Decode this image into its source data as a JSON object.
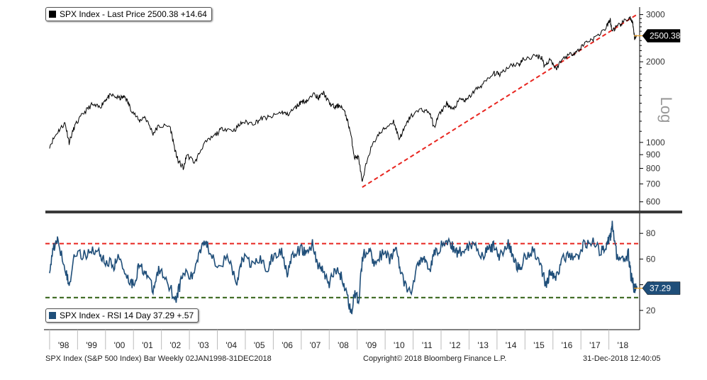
{
  "footer": {
    "left": "SPX Index (S&P 500 Index) Bar  Weekly 02JAN1998-31DEC2018",
    "center": "Copyright© 2018 Bloomberg Finance L.P.",
    "right": "31-Dec-2018 12:40:05"
  },
  "colors": {
    "price_line": "#000000",
    "rsi_line": "#1f4e79",
    "red_dashed": "#e8251f",
    "green_dashed": "#2e5e10",
    "callout_line": "#f0a020",
    "divider": "#3a3a3a"
  },
  "chart_data": [
    {
      "type": "line",
      "panel": "price",
      "legend": "SPX Index - Last Price  2500.38  +14.64",
      "scale_label": "Log",
      "y_scale": "log",
      "ylim": [
        560,
        3200
      ],
      "y_ticks": [
        600,
        700,
        800,
        900,
        1000,
        2000,
        3000
      ],
      "last_value_label": "2500.38",
      "last_value": 2500.38,
      "x": [
        1998.0,
        1998.3,
        1998.55,
        1998.7,
        1998.9,
        1999.2,
        1999.5,
        1999.8,
        2000.0,
        2000.2,
        2000.5,
        2000.7,
        2000.9,
        2001.2,
        2001.4,
        2001.7,
        2001.9,
        2002.3,
        2002.5,
        2002.6,
        2002.8,
        2002.9,
        2003.2,
        2003.5,
        2003.9,
        2004.2,
        2004.6,
        2004.9,
        2005.3,
        2005.6,
        2005.9,
        2006.3,
        2006.5,
        2006.8,
        2007.0,
        2007.2,
        2007.5,
        2007.6,
        2007.8,
        2008.0,
        2008.2,
        2008.4,
        2008.6,
        2008.75,
        2008.9,
        2009.05,
        2009.18,
        2009.4,
        2009.7,
        2010.0,
        2010.3,
        2010.5,
        2010.7,
        2010.9,
        2011.3,
        2011.6,
        2011.75,
        2011.9,
        2012.2,
        2012.4,
        2012.7,
        2012.9,
        2013.2,
        2013.5,
        2013.9,
        2014.1,
        2014.5,
        2014.8,
        2014.95,
        2015.4,
        2015.6,
        2015.7,
        2015.9,
        2016.1,
        2016.4,
        2016.7,
        2016.9,
        2017.2,
        2017.5,
        2017.9,
        2018.05,
        2018.1,
        2018.3,
        2018.5,
        2018.75,
        2018.85,
        2018.92,
        2019.0
      ],
      "series": [
        {
          "values": [
            970,
            1100,
            1180,
            1000,
            1150,
            1280,
            1380,
            1350,
            1450,
            1500,
            1460,
            1480,
            1340,
            1200,
            1250,
            1080,
            1150,
            1150,
            920,
            850,
            800,
            900,
            840,
            980,
            1060,
            1130,
            1110,
            1190,
            1180,
            1230,
            1240,
            1300,
            1270,
            1350,
            1420,
            1430,
            1520,
            1460,
            1530,
            1400,
            1350,
            1380,
            1260,
            1100,
            880,
            880,
            700,
            900,
            1050,
            1130,
            1200,
            1030,
            1130,
            1250,
            1330,
            1290,
            1130,
            1250,
            1400,
            1320,
            1450,
            1430,
            1560,
            1650,
            1810,
            1800,
            1950,
            1960,
            2050,
            2100,
            2080,
            1920,
            2050,
            1880,
            2080,
            2150,
            2200,
            2380,
            2450,
            2680,
            2870,
            2620,
            2700,
            2800,
            2930,
            2770,
            2450,
            2500.38
          ]
        }
      ],
      "trendline": {
        "style": "dashed",
        "points": [
          [
            2009.18,
            680
          ],
          [
            2019.0,
            3000
          ]
        ]
      }
    },
    {
      "type": "line",
      "panel": "rsi",
      "legend": "SPX Index - RSI 14 Day  37.29  +.57",
      "ylim": [
        5,
        95
      ],
      "y_ticks": [
        20,
        40,
        60,
        80
      ],
      "last_value_label": "37.29",
      "last_value": 37.29,
      "x": [
        1998.0,
        1998.15,
        1998.3,
        1998.55,
        1998.7,
        1998.9,
        1999.2,
        1999.5,
        1999.8,
        2000.0,
        2000.3,
        2000.5,
        2000.8,
        2001.0,
        2001.2,
        2001.45,
        2001.7,
        2001.9,
        2002.2,
        2002.5,
        2002.6,
        2002.8,
        2003.1,
        2003.3,
        2003.5,
        2003.7,
        2004.0,
        2004.4,
        2004.7,
        2004.9,
        2005.2,
        2005.5,
        2005.8,
        2006.0,
        2006.3,
        2006.5,
        2006.7,
        2007.0,
        2007.2,
        2007.4,
        2007.6,
        2007.8,
        2008.0,
        2008.2,
        2008.4,
        2008.6,
        2008.78,
        2008.9,
        2009.05,
        2009.2,
        2009.4,
        2009.6,
        2009.9,
        2010.2,
        2010.4,
        2010.6,
        2010.9,
        2011.2,
        2011.4,
        2011.6,
        2011.75,
        2011.9,
        2012.2,
        2012.4,
        2012.6,
        2012.9,
        2013.2,
        2013.5,
        2013.7,
        2013.9,
        2014.1,
        2014.4,
        2014.6,
        2014.8,
        2015.0,
        2015.3,
        2015.6,
        2015.75,
        2015.9,
        2016.1,
        2016.3,
        2016.6,
        2016.9,
        2017.1,
        2017.4,
        2017.7,
        2017.9,
        2018.05,
        2018.12,
        2018.3,
        2018.5,
        2018.7,
        2018.78,
        2018.85,
        2018.92,
        2019.0
      ],
      "series": [
        {
          "values": [
            52,
            70,
            74,
            55,
            38,
            66,
            62,
            68,
            64,
            58,
            55,
            62,
            45,
            40,
            55,
            50,
            35,
            52,
            44,
            28,
            35,
            50,
            45,
            62,
            75,
            68,
            56,
            60,
            40,
            62,
            55,
            60,
            52,
            62,
            66,
            50,
            62,
            68,
            64,
            72,
            55,
            50,
            40,
            52,
            48,
            35,
            18,
            32,
            28,
            62,
            68,
            58,
            64,
            60,
            70,
            45,
            32,
            58,
            60,
            52,
            64,
            68,
            74,
            70,
            64,
            70,
            72,
            62,
            68,
            70,
            62,
            72,
            60,
            52,
            62,
            68,
            52,
            40,
            50,
            44,
            58,
            64,
            60,
            72,
            74,
            65,
            72,
            76,
            88,
            60,
            58,
            64,
            48,
            42,
            36,
            37.29
          ]
        }
      ],
      "upper_line": 72,
      "lower_line": 30
    }
  ],
  "x_axis": {
    "labels": [
      "'98",
      "'99",
      "'00",
      "'01",
      "'02",
      "'03",
      "'04",
      "'05",
      "'06",
      "'07",
      "'08",
      "'09",
      "'10",
      "'11",
      "'12",
      "'13",
      "'14",
      "'15",
      "'16",
      "'17",
      "'18"
    ],
    "start_year": 1998
  }
}
